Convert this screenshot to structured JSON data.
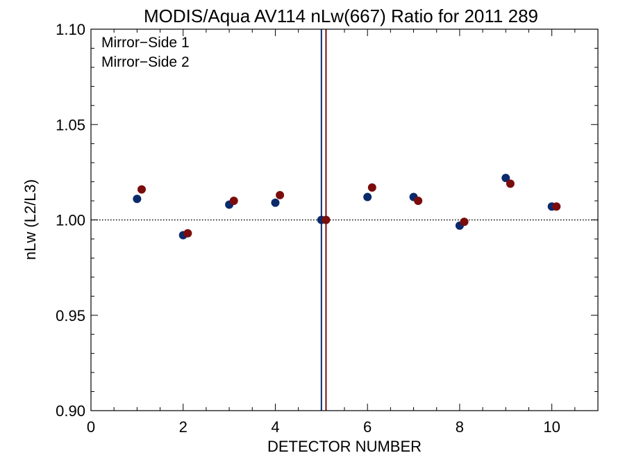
{
  "chart_data": {
    "type": "scatter",
    "title": "MODIS/Aqua AV114 nLw(667) Ratio for 2011 289",
    "xlabel": "DETECTOR NUMBER",
    "ylabel": "nLw (L2/L3)",
    "xlim": [
      0,
      11
    ],
    "ylim": [
      0.9,
      1.1
    ],
    "xticks": [
      0,
      2,
      4,
      6,
      8,
      10
    ],
    "yticks": [
      0.9,
      0.95,
      1.0,
      1.05,
      1.1
    ],
    "xtick_labels": [
      "0",
      "2",
      "4",
      "6",
      "8",
      "10"
    ],
    "ytick_labels": [
      "0.90",
      "0.95",
      "1.00",
      "1.05",
      "1.10"
    ],
    "reference_line": 1.0,
    "vertical_lines": [
      {
        "x": 5.0,
        "color": "#0b2a6b"
      },
      {
        "x": 5.1,
        "color": "#7a0c0c"
      }
    ],
    "legend_position": "top-left",
    "series": [
      {
        "name": "Mirror−Side 1",
        "color": "#0b2a6b",
        "x": [
          1,
          2,
          3,
          4,
          5,
          6,
          7,
          8,
          9,
          10
        ],
        "y": [
          1.011,
          0.992,
          1.008,
          1.009,
          1.0,
          1.012,
          1.012,
          0.997,
          1.022,
          1.007
        ]
      },
      {
        "name": "Mirror−Side 2",
        "color": "#7a0c0c",
        "x": [
          1.1,
          2.1,
          3.1,
          4.1,
          5.1,
          6.1,
          7.1,
          8.1,
          9.1,
          10.1
        ],
        "y": [
          1.016,
          0.993,
          1.01,
          1.013,
          1.0,
          1.017,
          1.01,
          0.999,
          1.019,
          1.007
        ]
      }
    ]
  }
}
